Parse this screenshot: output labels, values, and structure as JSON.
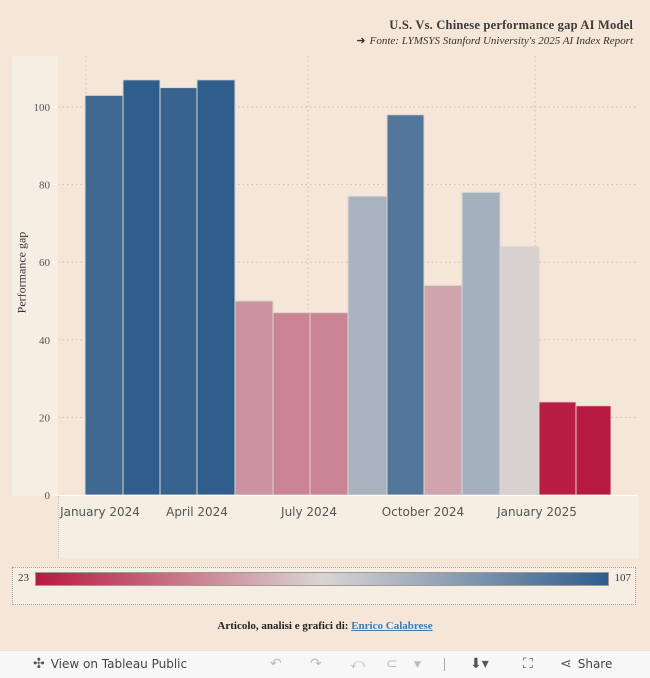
{
  "header": {
    "title": "U.S. Vs. Chinese performance gap AI Model",
    "subtitle_arrow": "➜",
    "subtitle": "Fonte:  LYMSYS Stanford University's 2025 AI Index Report"
  },
  "chart_data": {
    "type": "bar",
    "title": "U.S. Vs. Chinese performance gap AI Model",
    "xlabel": "",
    "ylabel": "Performance gap",
    "ylim": [
      0,
      110
    ],
    "yticks": [
      0,
      20,
      40,
      60,
      80,
      100
    ],
    "xtick_labels": [
      "January 2024",
      "April 2024",
      "July 2024",
      "October 2024",
      "January 2025"
    ],
    "grid": true,
    "categories": [
      "Jan 2024",
      "Feb 2024",
      "Mar 2024",
      "Apr 2024",
      "May 2024",
      "Jun 2024",
      "Jul 2024",
      "Aug 2024",
      "Sep 2024",
      "Oct 2024",
      "Nov 2024",
      "Dec 2024",
      "Jan 2025",
      "Feb 2025"
    ],
    "values": [
      103,
      107,
      105,
      107,
      50,
      47,
      47,
      77,
      98,
      54,
      78,
      64,
      24,
      23
    ],
    "color_scale": {
      "min": 23,
      "max": 107,
      "low_color": "#b8193f",
      "mid_color": "#d9d5d4",
      "high_color": "#2f5d8c"
    }
  },
  "legend": {
    "min_label": "23",
    "max_label": "107"
  },
  "credit": {
    "text": "Articolo, analisi e grafici di:",
    "link": "Enrico Calabrese"
  },
  "toolbar": {
    "view_label": "View on Tableau Public",
    "share_label": "Share"
  }
}
